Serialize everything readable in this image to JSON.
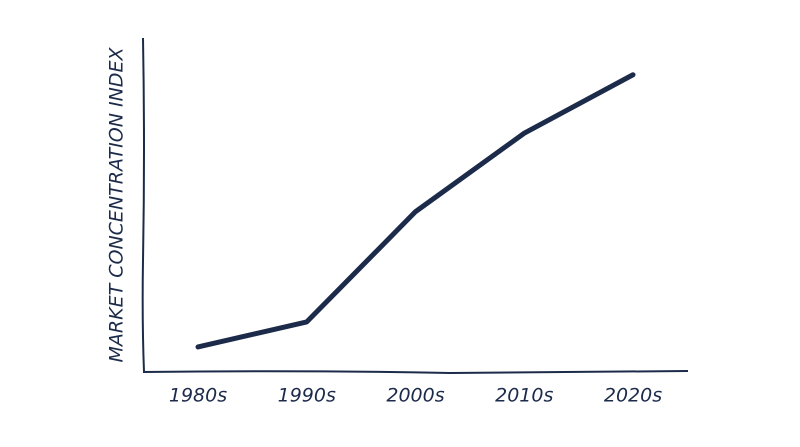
{
  "chart_data": {
    "type": "line",
    "y_label": "MARKET CONCENTRATION INDEX",
    "categories": [
      "1980s",
      "1990s",
      "2000s",
      "2010s",
      "2020s"
    ],
    "values": [
      7.5,
      15,
      48,
      71.5,
      89
    ],
    "color": "#1c2b4a",
    "ylim": [
      0,
      100
    ]
  }
}
